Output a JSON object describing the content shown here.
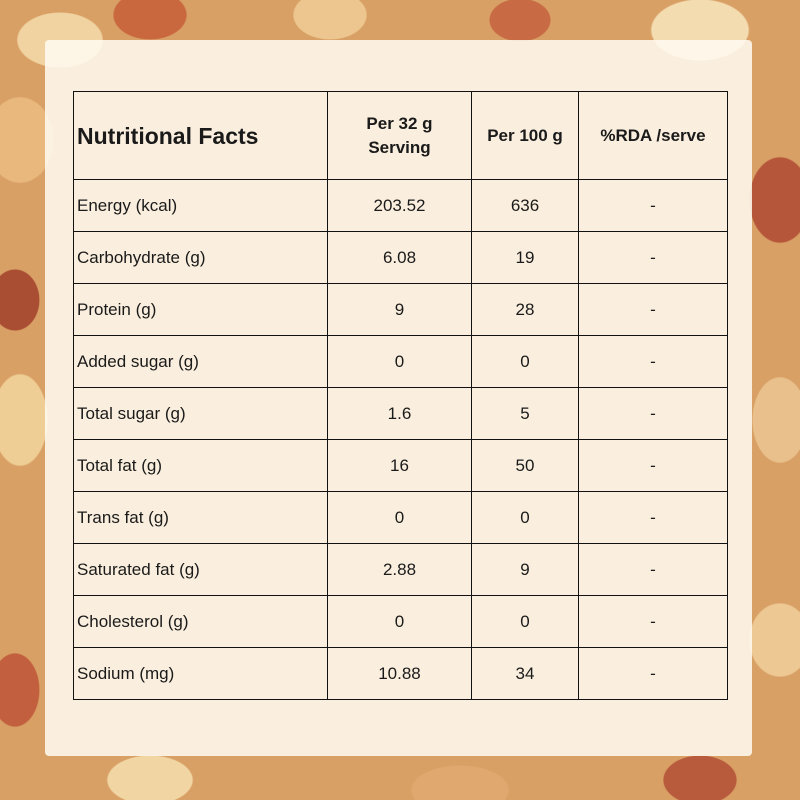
{
  "table": {
    "headers": [
      "Nutritional Facts",
      "Per 32 g Serving",
      "Per 100 g",
      "%RDA /serve"
    ],
    "rows": [
      [
        "Energy (kcal)",
        "203.52",
        "636",
        "-"
      ],
      [
        "Carbohydrate (g)",
        "6.08",
        "19",
        "-"
      ],
      [
        "Protein (g)",
        "9",
        "28",
        "-"
      ],
      [
        "Added sugar (g)",
        "0",
        "0",
        "-"
      ],
      [
        "Total sugar (g)",
        "1.6",
        "5",
        "-"
      ],
      [
        "Total fat (g)",
        "16",
        "50",
        "-"
      ],
      [
        "Trans fat (g)",
        "0",
        "0",
        "-"
      ],
      [
        "Saturated fat (g)",
        "2.88",
        "9",
        "-"
      ],
      [
        "Cholesterol (g)",
        "0",
        "0",
        "-"
      ],
      [
        "Sodium (mg)",
        "10.88",
        "34",
        "-"
      ]
    ]
  }
}
